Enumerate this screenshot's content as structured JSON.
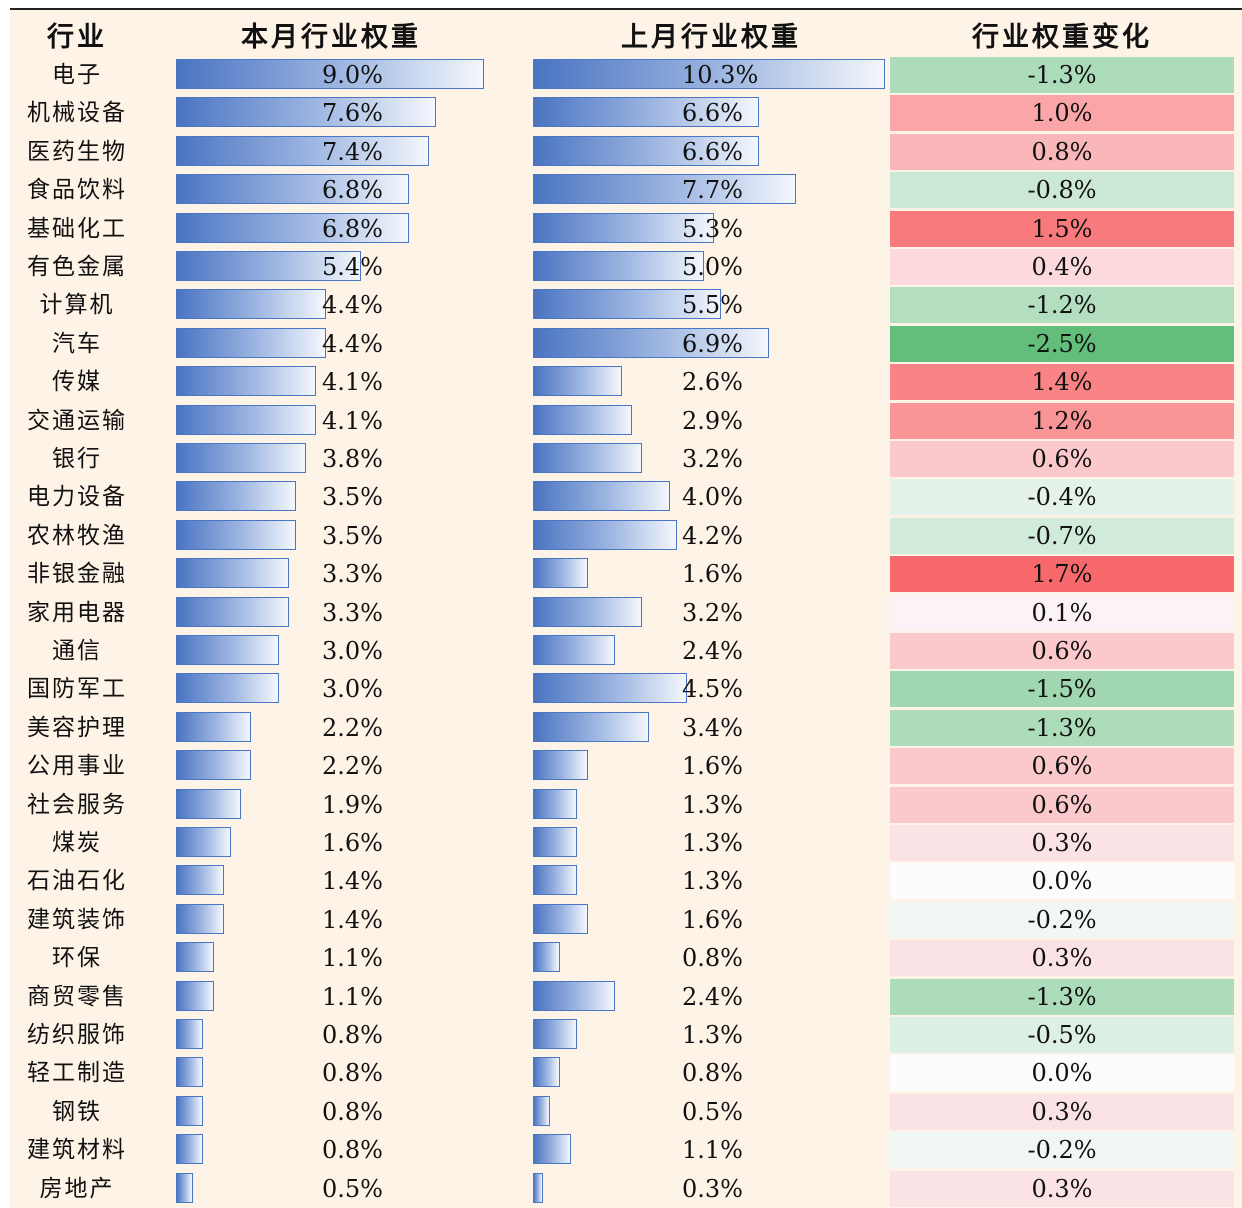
{
  "header": {
    "industry": "行业",
    "current": "本月行业权重",
    "previous": "上月行业权重",
    "change": "行业权重变化"
  },
  "colors": {
    "bar_border": "#4a76c2",
    "bar_start": "#4a74c2",
    "bar_end": "#f4f7fd",
    "increase": "#f8696b",
    "decrease": "#63be7b",
    "neutral": "#fcfcff"
  },
  "chart_data": {
    "type": "table",
    "columns": [
      "行业",
      "本月行业权重",
      "上月行业权重",
      "行业权重变化"
    ],
    "rows": [
      {
        "industry": "电子",
        "current": 9.0,
        "previous": 10.3,
        "change": -1.3,
        "current_label": "9.0%",
        "previous_label": "10.3%",
        "change_label": "-1.3%"
      },
      {
        "industry": "机械设备",
        "current": 7.6,
        "previous": 6.6,
        "change": 1.0,
        "current_label": "7.6%",
        "previous_label": "6.6%",
        "change_label": "1.0%"
      },
      {
        "industry": "医药生物",
        "current": 7.4,
        "previous": 6.6,
        "change": 0.8,
        "current_label": "7.4%",
        "previous_label": "6.6%",
        "change_label": "0.8%"
      },
      {
        "industry": "食品饮料",
        "current": 6.8,
        "previous": 7.7,
        "change": -0.8,
        "current_label": "6.8%",
        "previous_label": "7.7%",
        "change_label": "-0.8%"
      },
      {
        "industry": "基础化工",
        "current": 6.8,
        "previous": 5.3,
        "change": 1.5,
        "current_label": "6.8%",
        "previous_label": "5.3%",
        "change_label": "1.5%"
      },
      {
        "industry": "有色金属",
        "current": 5.4,
        "previous": 5.0,
        "change": 0.4,
        "current_label": "5.4%",
        "previous_label": "5.0%",
        "change_label": "0.4%"
      },
      {
        "industry": "计算机",
        "current": 4.4,
        "previous": 5.5,
        "change": -1.2,
        "current_label": "4.4%",
        "previous_label": "5.5%",
        "change_label": "-1.2%"
      },
      {
        "industry": "汽车",
        "current": 4.4,
        "previous": 6.9,
        "change": -2.5,
        "current_label": "4.4%",
        "previous_label": "6.9%",
        "change_label": "-2.5%"
      },
      {
        "industry": "传媒",
        "current": 4.1,
        "previous": 2.6,
        "change": 1.4,
        "current_label": "4.1%",
        "previous_label": "2.6%",
        "change_label": "1.4%"
      },
      {
        "industry": "交通运输",
        "current": 4.1,
        "previous": 2.9,
        "change": 1.2,
        "current_label": "4.1%",
        "previous_label": "2.9%",
        "change_label": "1.2%"
      },
      {
        "industry": "银行",
        "current": 3.8,
        "previous": 3.2,
        "change": 0.6,
        "current_label": "3.8%",
        "previous_label": "3.2%",
        "change_label": "0.6%"
      },
      {
        "industry": "电力设备",
        "current": 3.5,
        "previous": 4.0,
        "change": -0.4,
        "current_label": "3.5%",
        "previous_label": "4.0%",
        "change_label": "-0.4%"
      },
      {
        "industry": "农林牧渔",
        "current": 3.5,
        "previous": 4.2,
        "change": -0.7,
        "current_label": "3.5%",
        "previous_label": "4.2%",
        "change_label": "-0.7%"
      },
      {
        "industry": "非银金融",
        "current": 3.3,
        "previous": 1.6,
        "change": 1.7,
        "current_label": "3.3%",
        "previous_label": "1.6%",
        "change_label": "1.7%"
      },
      {
        "industry": "家用电器",
        "current": 3.3,
        "previous": 3.2,
        "change": 0.1,
        "current_label": "3.3%",
        "previous_label": "3.2%",
        "change_label": "0.1%"
      },
      {
        "industry": "通信",
        "current": 3.0,
        "previous": 2.4,
        "change": 0.6,
        "current_label": "3.0%",
        "previous_label": "2.4%",
        "change_label": "0.6%"
      },
      {
        "industry": "国防军工",
        "current": 3.0,
        "previous": 4.5,
        "change": -1.5,
        "current_label": "3.0%",
        "previous_label": "4.5%",
        "change_label": "-1.5%"
      },
      {
        "industry": "美容护理",
        "current": 2.2,
        "previous": 3.4,
        "change": -1.3,
        "current_label": "2.2%",
        "previous_label": "3.4%",
        "change_label": "-1.3%"
      },
      {
        "industry": "公用事业",
        "current": 2.2,
        "previous": 1.6,
        "change": 0.6,
        "current_label": "2.2%",
        "previous_label": "1.6%",
        "change_label": "0.6%"
      },
      {
        "industry": "社会服务",
        "current": 1.9,
        "previous": 1.3,
        "change": 0.6,
        "current_label": "1.9%",
        "previous_label": "1.3%",
        "change_label": "0.6%"
      },
      {
        "industry": "煤炭",
        "current": 1.6,
        "previous": 1.3,
        "change": 0.3,
        "current_label": "1.6%",
        "previous_label": "1.3%",
        "change_label": "0.3%"
      },
      {
        "industry": "石油石化",
        "current": 1.4,
        "previous": 1.3,
        "change": 0.0,
        "current_label": "1.4%",
        "previous_label": "1.3%",
        "change_label": "0.0%"
      },
      {
        "industry": "建筑装饰",
        "current": 1.4,
        "previous": 1.6,
        "change": -0.2,
        "current_label": "1.4%",
        "previous_label": "1.6%",
        "change_label": "-0.2%"
      },
      {
        "industry": "环保",
        "current": 1.1,
        "previous": 0.8,
        "change": 0.3,
        "current_label": "1.1%",
        "previous_label": "0.8%",
        "change_label": "0.3%"
      },
      {
        "industry": "商贸零售",
        "current": 1.1,
        "previous": 2.4,
        "change": -1.3,
        "current_label": "1.1%",
        "previous_label": "2.4%",
        "change_label": "-1.3%"
      },
      {
        "industry": "纺织服饰",
        "current": 0.8,
        "previous": 1.3,
        "change": -0.5,
        "current_label": "0.8%",
        "previous_label": "1.3%",
        "change_label": "-0.5%"
      },
      {
        "industry": "轻工制造",
        "current": 0.8,
        "previous": 0.8,
        "change": 0.0,
        "current_label": "0.8%",
        "previous_label": "0.8%",
        "change_label": "0.0%"
      },
      {
        "industry": "钢铁",
        "current": 0.8,
        "previous": 0.5,
        "change": 0.3,
        "current_label": "0.8%",
        "previous_label": "0.5%",
        "change_label": "0.3%"
      },
      {
        "industry": "建筑材料",
        "current": 0.8,
        "previous": 1.1,
        "change": -0.2,
        "current_label": "0.8%",
        "previous_label": "1.1%",
        "change_label": "-0.2%"
      },
      {
        "industry": "房地产",
        "current": 0.5,
        "previous": 0.3,
        "change": 0.3,
        "current_label": "0.5%",
        "previous_label": "0.3%",
        "change_label": "0.3%"
      }
    ]
  }
}
